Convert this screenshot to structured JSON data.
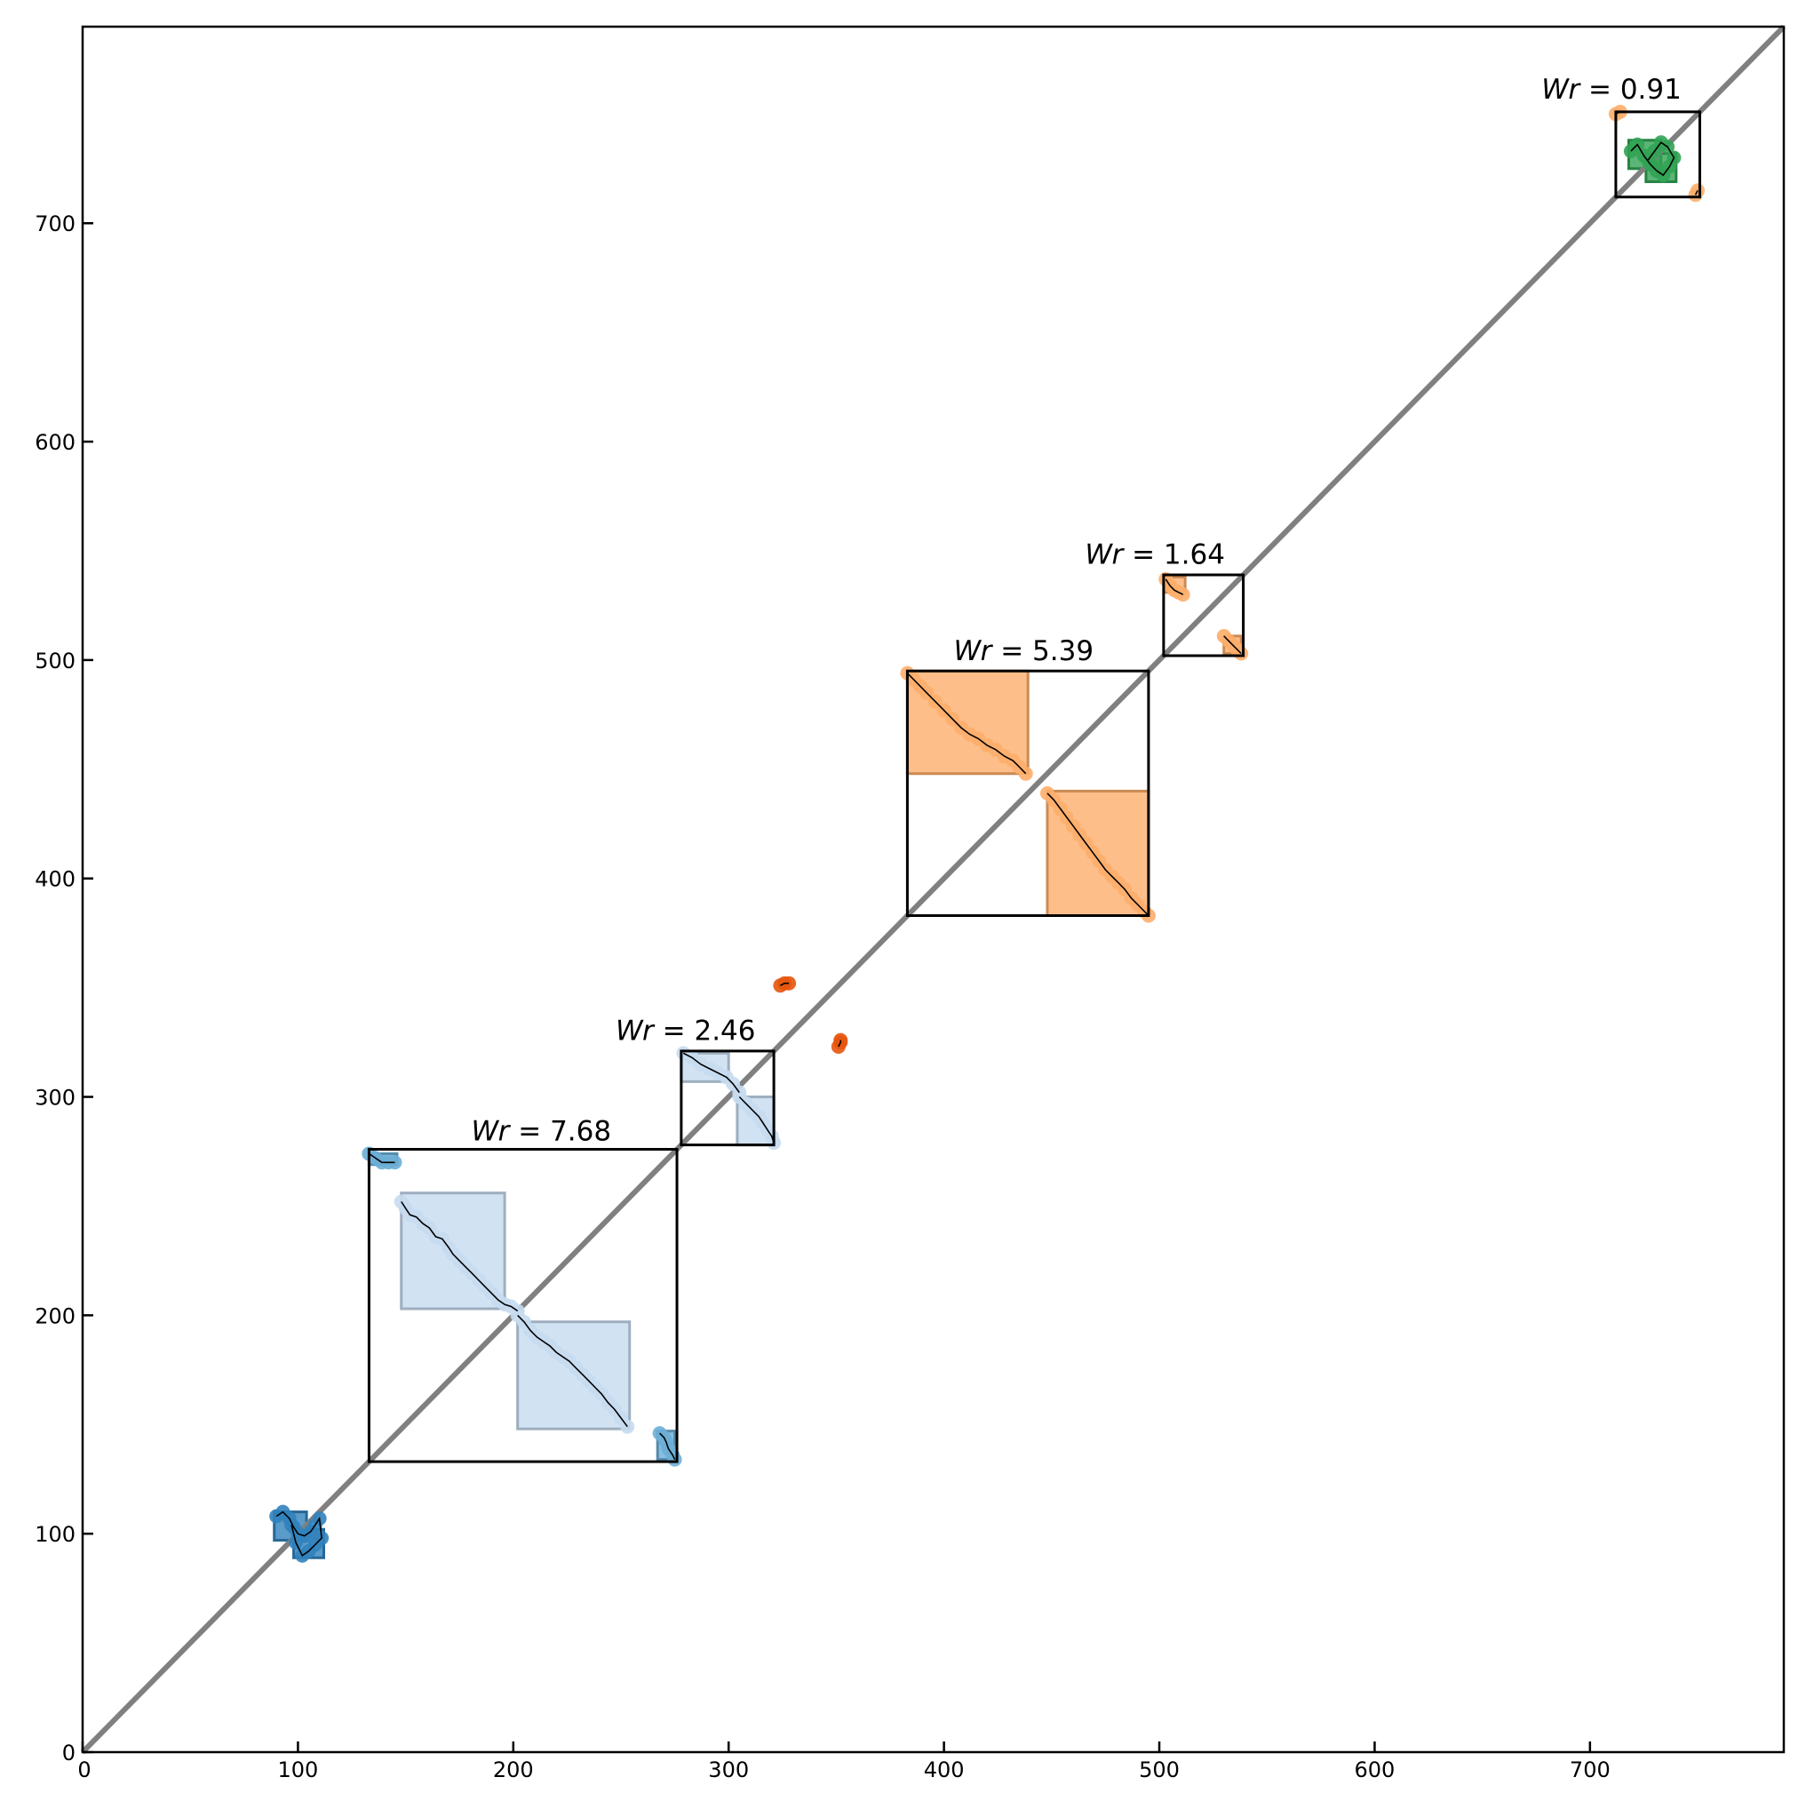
{
  "chart_data": {
    "type": "scatter",
    "title": "",
    "xlabel": "",
    "ylabel": "",
    "xlim": [
      0,
      790
    ],
    "ylim": [
      0,
      790
    ],
    "x_ticks": [
      0,
      100,
      200,
      300,
      400,
      500,
      600,
      700
    ],
    "y_ticks": [
      0,
      100,
      200,
      300,
      400,
      500,
      600,
      700
    ],
    "x_tick_labels": [
      "0",
      "100",
      "200",
      "300",
      "400",
      "500",
      "600",
      "700"
    ],
    "y_tick_labels": [
      "0",
      "100",
      "200",
      "300",
      "400",
      "500",
      "600",
      "700"
    ],
    "diagonal": {
      "from": [
        0,
        0
      ],
      "to": [
        790,
        790
      ],
      "color": "#808080"
    },
    "colors": {
      "blue_dark": "#3182bd",
      "blue_mid": "#6baed6",
      "blue_light": "#c6dbef",
      "orange_light": "#fdae6b",
      "orange_dark": "#e6550d",
      "green": "#31a354",
      "frame": "#000000"
    },
    "frames": [
      {
        "x0": 133,
        "x1": 276,
        "y0": 133,
        "y1": 276,
        "label_prefix": "Wr",
        "label_value": "= 7.68",
        "label_at": [
          213,
          280
        ]
      },
      {
        "x0": 278,
        "x1": 321,
        "y0": 278,
        "y1": 321,
        "label_prefix": "Wr",
        "label_value": "= 2.46",
        "label_at": [
          280,
          326
        ]
      },
      {
        "x0": 383,
        "x1": 495,
        "y0": 383,
        "y1": 495,
        "label_prefix": "Wr",
        "label_value": "= 5.39",
        "label_at": [
          437,
          500
        ]
      },
      {
        "x0": 502,
        "x1": 539,
        "y0": 502,
        "y1": 539,
        "label_prefix": "Wr",
        "label_value": "= 1.64",
        "label_at": [
          498,
          544
        ]
      },
      {
        "x0": 712,
        "x1": 751,
        "y0": 712,
        "y1": 751,
        "label_prefix": "Wr",
        "label_value": "= 0.91",
        "label_at": [
          710,
          757
        ]
      }
    ],
    "shaded_regions": [
      {
        "x0": 148,
        "x1": 196,
        "y0": 203,
        "y1": 256,
        "color": "blue_light"
      },
      {
        "x0": 202,
        "x1": 254,
        "y0": 148,
        "y1": 197,
        "color": "blue_light"
      },
      {
        "x0": 133,
        "x1": 146,
        "y0": 269,
        "y1": 274,
        "color": "blue_mid"
      },
      {
        "x0": 267,
        "x1": 275,
        "y0": 134,
        "y1": 147,
        "color": "blue_mid"
      },
      {
        "x0": 278,
        "x1": 300,
        "y0": 307,
        "y1": 320,
        "color": "blue_light"
      },
      {
        "x0": 304,
        "x1": 321,
        "y0": 278,
        "y1": 300,
        "color": "blue_light"
      },
      {
        "x0": 383,
        "x1": 439,
        "y0": 448,
        "y1": 495,
        "color": "orange_light"
      },
      {
        "x0": 448,
        "x1": 495,
        "y0": 383,
        "y1": 440,
        "color": "orange_light"
      },
      {
        "x0": 503,
        "x1": 512,
        "y0": 531,
        "y1": 538,
        "color": "orange_light"
      },
      {
        "x0": 530,
        "x1": 538,
        "y0": 503,
        "y1": 511,
        "color": "orange_light"
      },
      {
        "x0": 89,
        "x1": 104,
        "y0": 97,
        "y1": 110,
        "color": "blue_dark"
      },
      {
        "x0": 98,
        "x1": 112,
        "y0": 89,
        "y1": 102,
        "color": "blue_dark"
      },
      {
        "x0": 718,
        "x1": 733,
        "y0": 725,
        "y1": 738,
        "color": "green"
      },
      {
        "x0": 726,
        "x1": 740,
        "y0": 719,
        "y1": 732,
        "color": "green"
      }
    ],
    "series": [
      {
        "color": "blue_light",
        "x": [
          148,
          150,
          152,
          155,
          158,
          161,
          164,
          167,
          170,
          172,
          175,
          178,
          181,
          184,
          187,
          190,
          193,
          196,
          199,
          202
        ],
        "y": [
          252,
          249,
          246,
          245,
          242,
          240,
          236,
          235,
          231,
          228,
          225,
          222,
          219,
          216,
          213,
          210,
          207,
          205,
          204,
          202
        ]
      },
      {
        "color": "blue_light",
        "x": [
          202,
          205,
          208,
          211,
          214,
          217,
          220,
          223,
          226,
          229,
          232,
          235,
          238,
          241,
          244,
          247,
          250,
          253
        ],
        "y": [
          200,
          197,
          193,
          190,
          188,
          186,
          183,
          181,
          179,
          176,
          173,
          170,
          167,
          164,
          160,
          157,
          153,
          149
        ]
      },
      {
        "color": "blue_mid",
        "x": [
          133,
          136,
          139,
          142,
          145
        ],
        "y": [
          274,
          272,
          270,
          270,
          270
        ]
      },
      {
        "color": "blue_mid",
        "x": [
          268,
          270,
          271,
          272,
          274,
          275
        ],
        "y": [
          146,
          144,
          142,
          139,
          136,
          134
        ]
      },
      {
        "color": "blue_light",
        "x": [
          279,
          283,
          287,
          291,
          295,
          299,
          302,
          305
        ],
        "y": [
          320,
          318,
          315,
          313,
          311,
          309,
          306,
          302
        ]
      },
      {
        "color": "blue_light",
        "x": [
          305,
          308,
          311,
          314,
          316,
          318,
          320,
          321
        ],
        "y": [
          300,
          297,
          294,
          291,
          288,
          285,
          282,
          279
        ]
      },
      {
        "color": "orange_light",
        "x": [
          383,
          386,
          389,
          392,
          396,
          400,
          404,
          408,
          412,
          416,
          420,
          424,
          428,
          432,
          435,
          438
        ],
        "y": [
          494,
          491,
          488,
          485,
          481,
          477,
          473,
          469,
          466,
          464,
          461,
          459,
          456,
          454,
          451,
          448
        ]
      },
      {
        "color": "orange_light",
        "x": [
          448,
          451,
          454,
          457,
          460,
          463,
          466,
          469,
          472,
          475,
          478,
          481,
          484,
          487,
          490,
          493,
          495
        ],
        "y": [
          439,
          436,
          432,
          428,
          424,
          420,
          416,
          412,
          408,
          404,
          401,
          398,
          395,
          391,
          388,
          385,
          383
        ]
      },
      {
        "color": "orange_light",
        "x": [
          503,
          505,
          507,
          509,
          511
        ],
        "y": [
          537,
          534,
          532,
          531,
          530
        ]
      },
      {
        "color": "orange_light",
        "x": [
          530,
          532,
          534,
          536,
          538
        ],
        "y": [
          511,
          509,
          507,
          505,
          503
        ]
      },
      {
        "color": "orange_dark",
        "x": [
          324,
          326,
          328
        ],
        "y": [
          351,
          352,
          352
        ]
      },
      {
        "color": "orange_dark",
        "x": [
          351,
          352,
          352
        ],
        "y": [
          323,
          325,
          326
        ]
      },
      {
        "color": "blue_dark",
        "x": [
          90,
          93,
          96,
          98,
          100,
          103,
          106,
          108,
          110,
          111,
          108,
          105,
          102,
          99,
          97
        ],
        "y": [
          108,
          110,
          107,
          103,
          100,
          99,
          101,
          104,
          107,
          98,
          95,
          92,
          90,
          96,
          104
        ]
      },
      {
        "color": "green",
        "x": [
          719,
          722,
          725,
          728,
          731,
          734,
          737,
          739,
          736,
          733,
          730,
          727
        ],
        "y": [
          733,
          736,
          731,
          727,
          724,
          722,
          726,
          730,
          735,
          737,
          733,
          729
        ]
      },
      {
        "color": "orange_light",
        "x": [
          712,
          714
        ],
        "y": [
          750,
          751
        ]
      },
      {
        "color": "orange_light",
        "x": [
          749,
          750
        ],
        "y": [
          713,
          715
        ]
      }
    ]
  }
}
